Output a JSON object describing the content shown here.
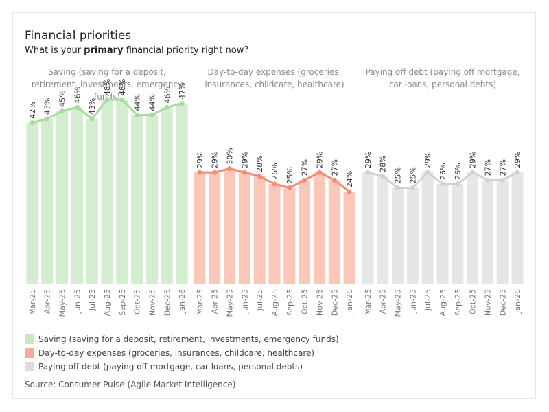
{
  "header": {
    "title": "Financial priorities",
    "subtitle_pre": "What is your ",
    "subtitle_bold": "primary",
    "subtitle_post": " financial priority right now?"
  },
  "source": "Source: Consumer Pulse (Agile Market Intelligence)",
  "chart_data": {
    "type": "bar",
    "title": "Financial priorities",
    "subtitle": "What is your primary financial priority right now?",
    "categories": [
      "Mar-25",
      "Apr-25",
      "May-25",
      "Jun-25",
      "Jul-25",
      "Aug-25",
      "Sep-25",
      "Oct-25",
      "Nov-25",
      "Dec-25",
      "Jan-26"
    ],
    "ylim": [
      0,
      50
    ],
    "grid": false,
    "legend_position": "bottom-left",
    "series": [
      {
        "name": "Saving (saving for a deposit, retirement, investments, emergency funds)",
        "panel_title": "Saving (saving for a deposit, retirement, investments, emergency funds)",
        "bar_color": "#d4ecd0",
        "line_color": "#a9d99f",
        "swatch_color": "#c9e7c3",
        "values": [
          42,
          43,
          45,
          46,
          43,
          48,
          48,
          44,
          44,
          46,
          47
        ]
      },
      {
        "name": "Day-to-day expenses (groceries, insurances, childcare, healthcare)",
        "panel_title": "Day-to-day expenses (groceries, insurances, childcare, healthcare)",
        "bar_color": "#fbc7b9",
        "line_color": "#f58b74",
        "swatch_color": "#f9ab97",
        "values": [
          29,
          29,
          30,
          29,
          28,
          26,
          25,
          27,
          29,
          27,
          24
        ]
      },
      {
        "name": "Paying off debt (paying off mortgage, car loans, personal debts)",
        "panel_title": "Paying off debt (paying off mortgage, car loans, personal debts)",
        "bar_color": "#e6e6e6",
        "line_color": "#d2d2d2",
        "swatch_color": "#dcdcdc",
        "values": [
          29,
          28,
          25,
          25,
          29,
          26,
          26,
          29,
          27,
          27,
          29
        ]
      }
    ]
  }
}
